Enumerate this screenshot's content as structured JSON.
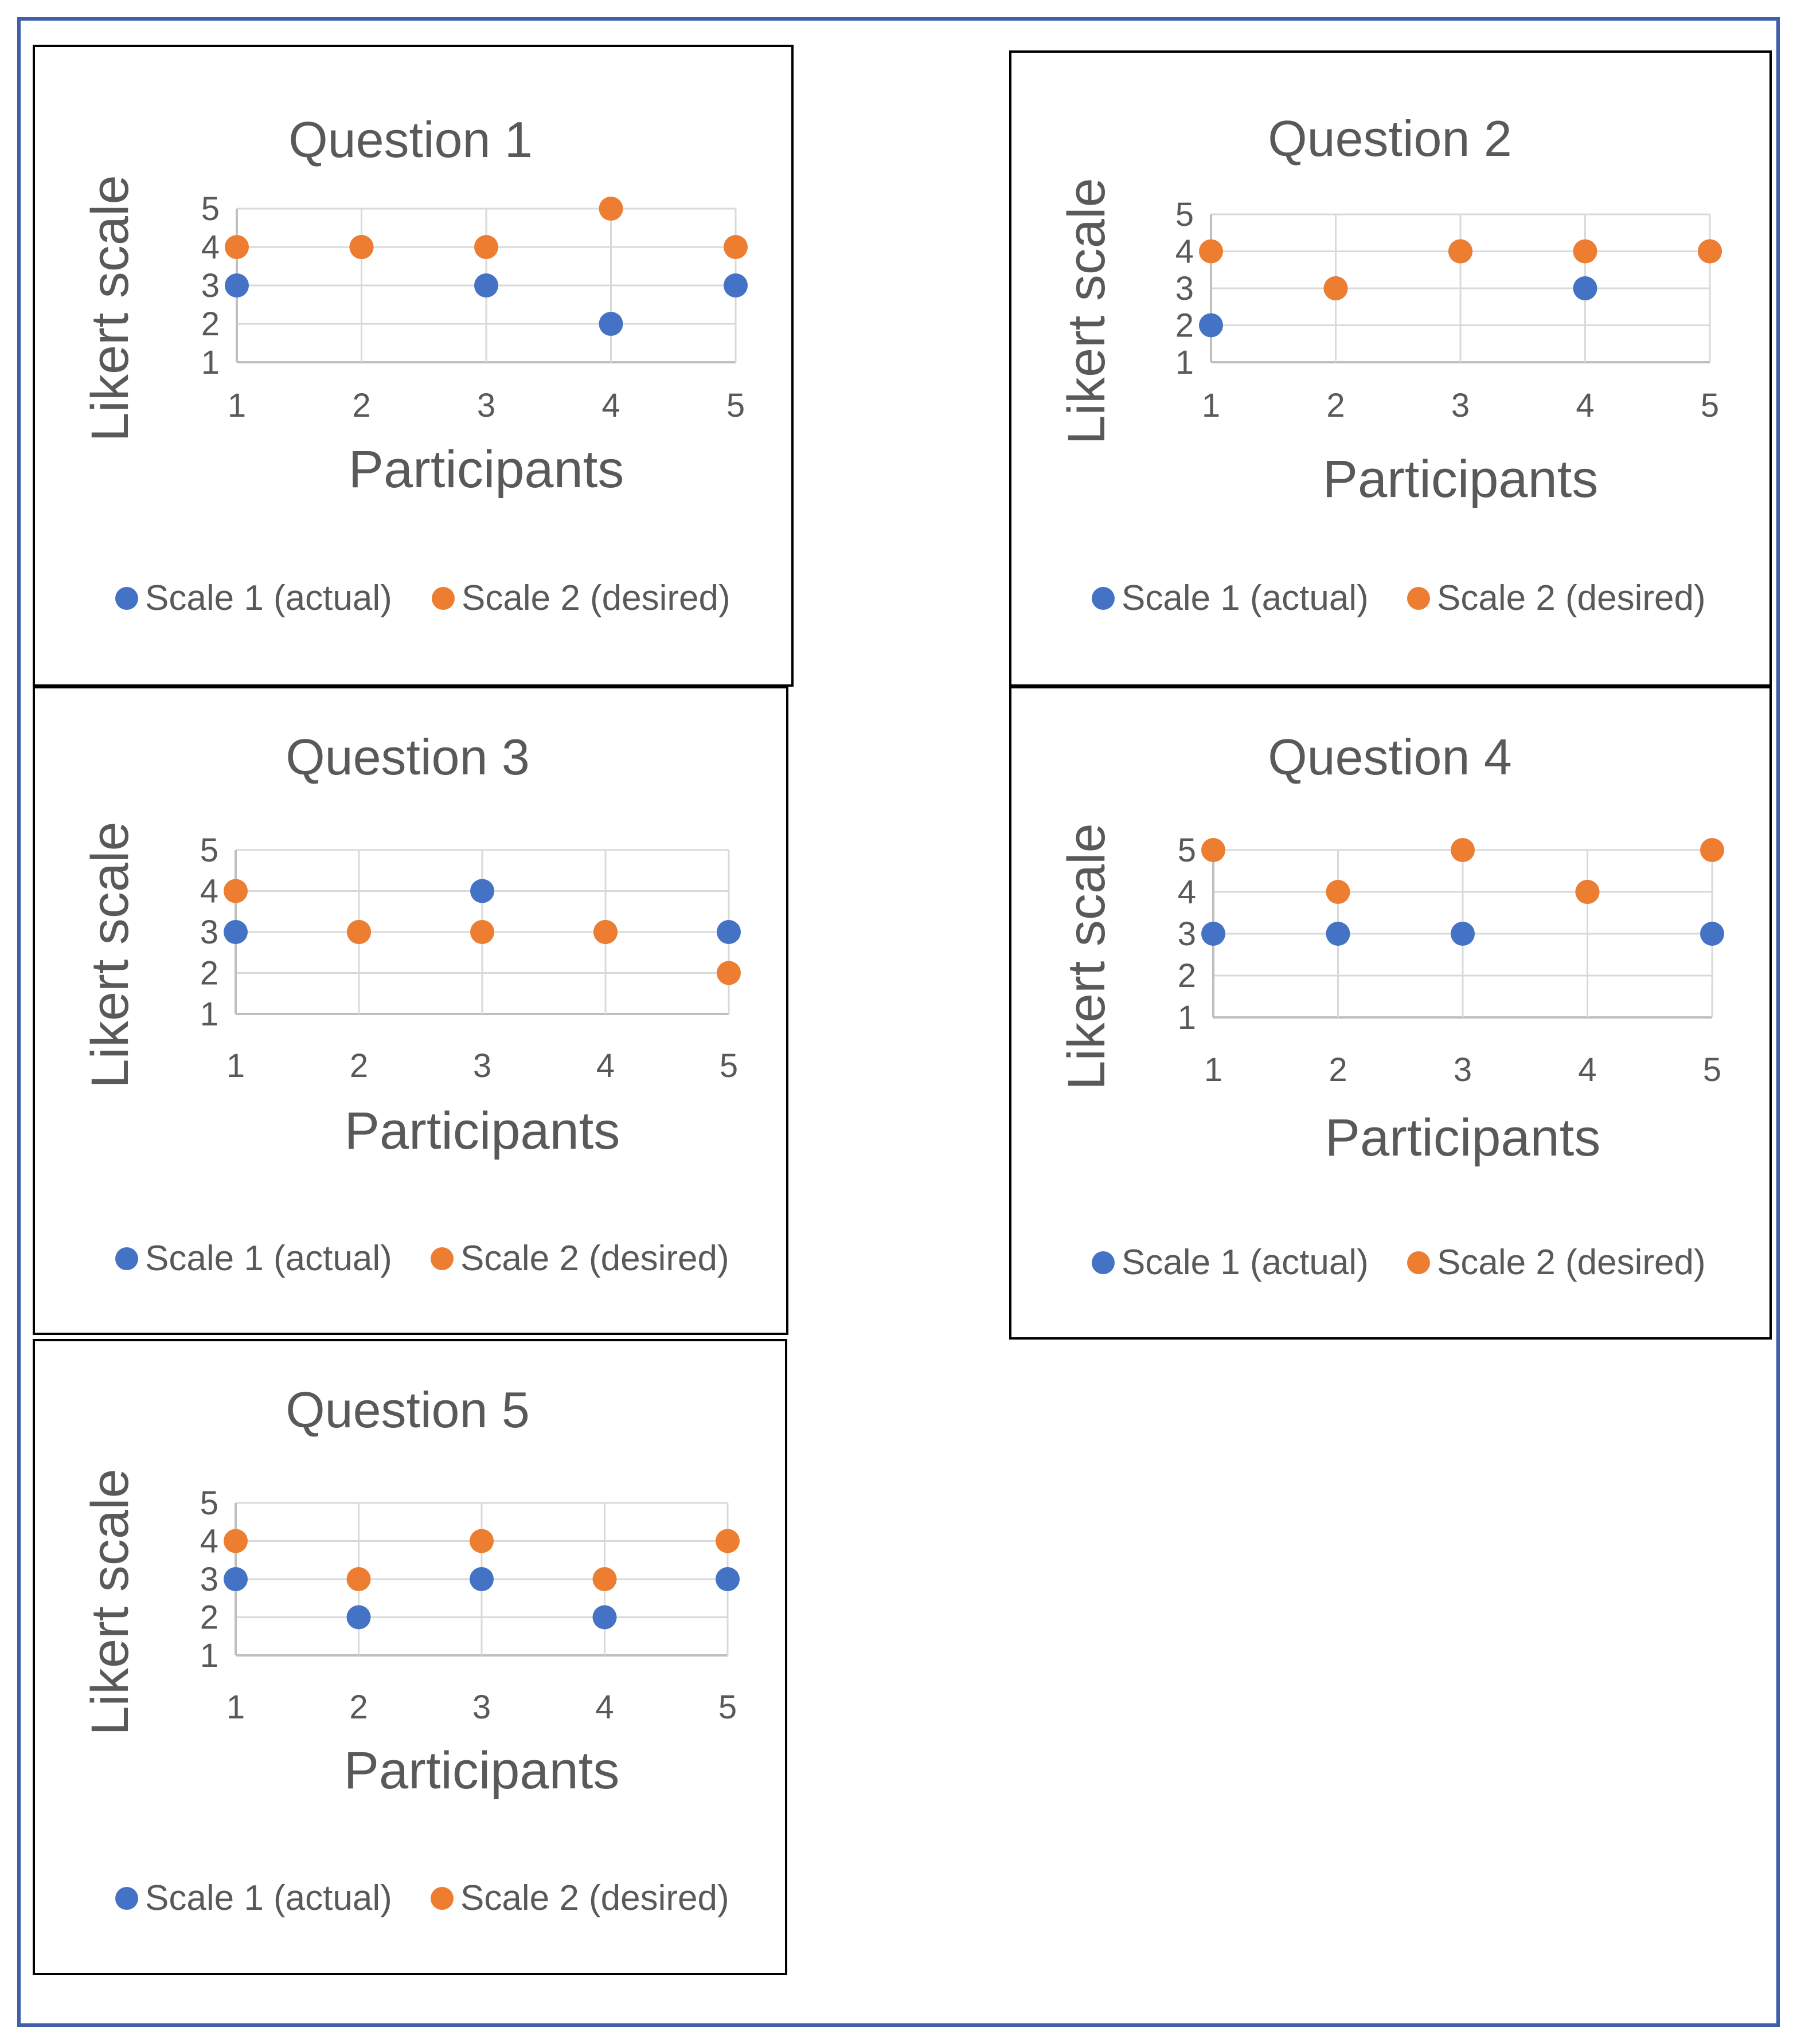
{
  "colors": {
    "scale1": "#4472c4",
    "scale2": "#ed7d31",
    "frame": "#3f5fa8"
  },
  "chart_data": [
    {
      "type": "scatter",
      "title": "Question 1",
      "xlabel": "Participants",
      "ylabel": "Likert scale",
      "x": [
        1,
        2,
        3,
        4,
        5
      ],
      "xticks": [
        1,
        2,
        3,
        4,
        5
      ],
      "yticks": [
        1,
        2,
        3,
        4,
        5
      ],
      "ylim": [
        1,
        5
      ],
      "legend_position": "bottom",
      "series": [
        {
          "name": "Scale 1 (actual)",
          "values": [
            3,
            4,
            3,
            2,
            3
          ]
        },
        {
          "name": "Scale 2 (desired)",
          "values": [
            4,
            4,
            4,
            5,
            4
          ]
        }
      ]
    },
    {
      "type": "scatter",
      "title": "Question 2",
      "xlabel": "Participants",
      "ylabel": "Likert scale",
      "x": [
        1,
        2,
        3,
        4,
        5
      ],
      "xticks": [
        1,
        2,
        3,
        4,
        5
      ],
      "yticks": [
        1,
        2,
        3,
        4,
        5
      ],
      "ylim": [
        1,
        5
      ],
      "legend_position": "bottom",
      "series": [
        {
          "name": "Scale 1 (actual)",
          "values": [
            2,
            3,
            4,
            3,
            4
          ]
        },
        {
          "name": "Scale 2 (desired)",
          "values": [
            4,
            3,
            4,
            4,
            4
          ]
        }
      ]
    },
    {
      "type": "scatter",
      "title": "Question 3",
      "xlabel": "Participants",
      "ylabel": "Likert scale",
      "x": [
        1,
        2,
        3,
        4,
        5
      ],
      "xticks": [
        1,
        2,
        3,
        4,
        5
      ],
      "yticks": [
        1,
        2,
        3,
        4,
        5
      ],
      "ylim": [
        1,
        5
      ],
      "legend_position": "bottom",
      "series": [
        {
          "name": "Scale 1 (actual)",
          "values": [
            3,
            3,
            4,
            3,
            3
          ]
        },
        {
          "name": "Scale 2 (desired)",
          "values": [
            4,
            3,
            3,
            3,
            2
          ]
        }
      ]
    },
    {
      "type": "scatter",
      "title": "Question 4",
      "xlabel": "Participants",
      "ylabel": "Likert scale",
      "x": [
        1,
        2,
        3,
        4,
        5
      ],
      "xticks": [
        1,
        2,
        3,
        4,
        5
      ],
      "yticks": [
        1,
        2,
        3,
        4,
        5
      ],
      "ylim": [
        1,
        5
      ],
      "legend_position": "bottom",
      "series": [
        {
          "name": "Scale 1 (actual)",
          "values": [
            3,
            3,
            3,
            4,
            3
          ]
        },
        {
          "name": "Scale 2 (desired)",
          "values": [
            5,
            4,
            5,
            4,
            5
          ]
        }
      ]
    },
    {
      "type": "scatter",
      "title": "Question 5",
      "xlabel": "Participants",
      "ylabel": "Likert scale",
      "x": [
        1,
        2,
        3,
        4,
        5
      ],
      "xticks": [
        1,
        2,
        3,
        4,
        5
      ],
      "yticks": [
        1,
        2,
        3,
        4,
        5
      ],
      "ylim": [
        1,
        5
      ],
      "legend_position": "bottom",
      "series": [
        {
          "name": "Scale 1 (actual)",
          "values": [
            3,
            2,
            3,
            2,
            3
          ]
        },
        {
          "name": "Scale 2 (desired)",
          "values": [
            4,
            3,
            4,
            3,
            4
          ]
        }
      ]
    }
  ]
}
